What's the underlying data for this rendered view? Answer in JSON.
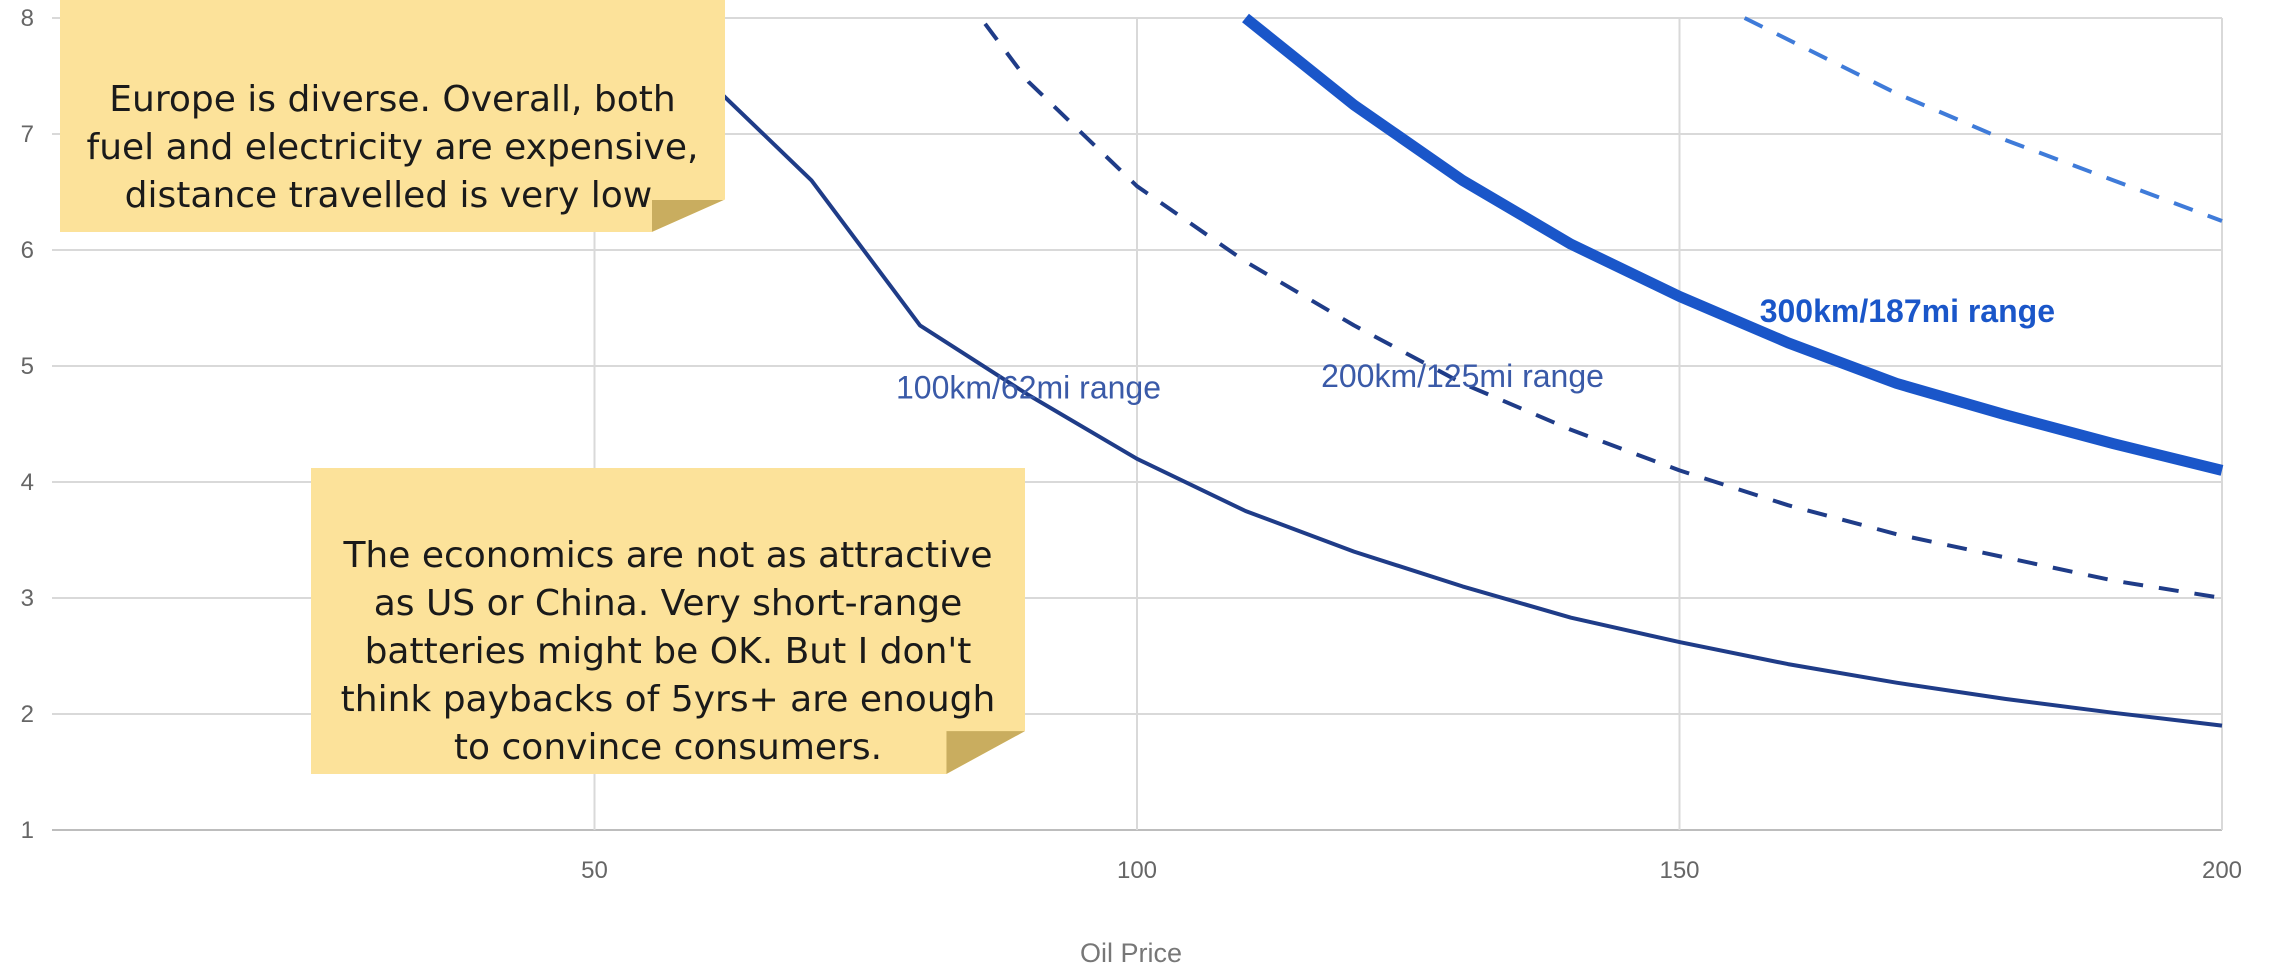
{
  "chart_data": {
    "type": "line",
    "xlabel": "Oil Price",
    "ylabel": "",
    "xlim": [
      0,
      200
    ],
    "ylim": [
      1,
      8
    ],
    "x_ticks": [
      50,
      100,
      150,
      200
    ],
    "y_ticks": [
      1,
      2,
      3,
      4,
      5,
      6,
      7,
      8
    ],
    "grid": true,
    "series": [
      {
        "name": "100km/62mi range",
        "style": "solid",
        "color": "#1f3c88",
        "x": [
          50,
          60,
          70,
          80,
          90,
          100,
          110,
          120,
          130,
          140,
          150,
          160,
          170,
          180,
          190,
          200
        ],
        "y": [
          8.4,
          7.5,
          6.6,
          5.35,
          4.75,
          4.2,
          3.75,
          3.4,
          3.1,
          2.83,
          2.62,
          2.43,
          2.27,
          2.13,
          2.01,
          1.9
        ]
      },
      {
        "name": "200km/125mi range",
        "style": "dashed",
        "color": "#1f3c88",
        "x": [
          86,
          90,
          100,
          110,
          120,
          130,
          140,
          150,
          160,
          170,
          180,
          190,
          200
        ],
        "y": [
          7.95,
          7.45,
          6.55,
          5.9,
          5.35,
          4.85,
          4.45,
          4.1,
          3.8,
          3.55,
          3.35,
          3.15,
          3.0
        ]
      },
      {
        "name": "300km/187mi range",
        "style": "solid-thick",
        "color": "#1a56c9",
        "x": [
          110,
          120,
          130,
          140,
          150,
          160,
          170,
          180,
          190,
          200
        ],
        "y": [
          8.0,
          7.25,
          6.6,
          6.05,
          5.6,
          5.2,
          4.85,
          4.58,
          4.33,
          4.1
        ]
      },
      {
        "name": "",
        "style": "dashed",
        "color": "#3f7bd9",
        "x": [
          156,
          170,
          180,
          190,
          200
        ],
        "y": [
          8.0,
          7.35,
          6.95,
          6.6,
          6.25
        ]
      }
    ],
    "annotations": [
      {
        "id": "note-1",
        "text": "Europe is diverse. Overall, both\nfuel and electricity are expensive,\ndistance travelled is very low."
      },
      {
        "id": "note-2",
        "text": "The economics are not as attractive\nas US or China. Very short-range\nbatteries might be OK. But I don't\nthink paybacks of 5yrs+ are enough\nto convince consumers."
      }
    ]
  }
}
